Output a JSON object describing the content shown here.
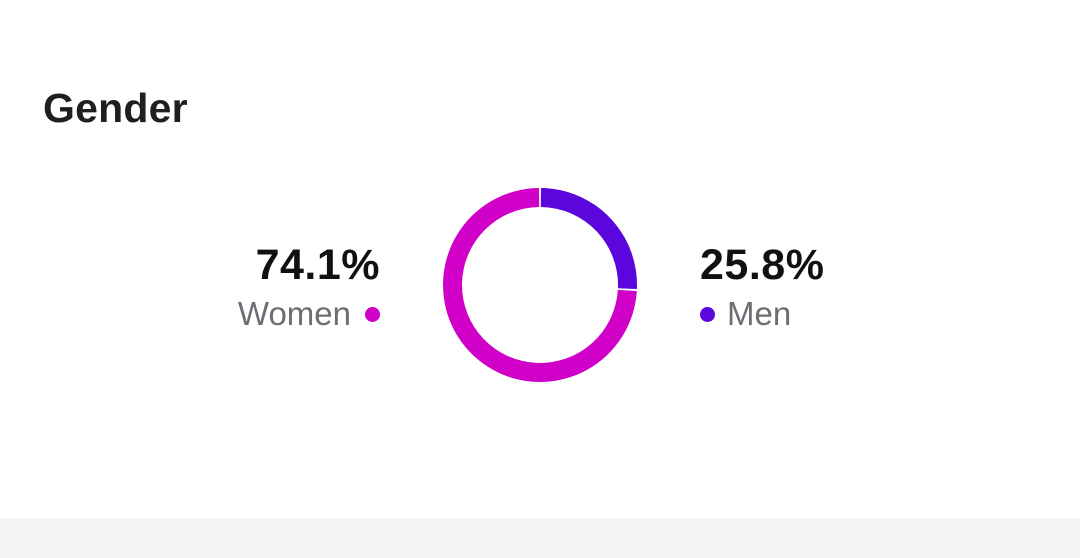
{
  "title": "Gender",
  "colors": {
    "women": "#d000c8",
    "men": "#5a06dc",
    "gap": "#ffffff"
  },
  "chart_data": {
    "type": "pie",
    "categories": [
      "Women",
      "Men"
    ],
    "values": [
      74.1,
      25.8
    ],
    "value_labels": [
      "74.1%",
      "25.8%"
    ],
    "title": "Gender",
    "legend": "beside"
  }
}
